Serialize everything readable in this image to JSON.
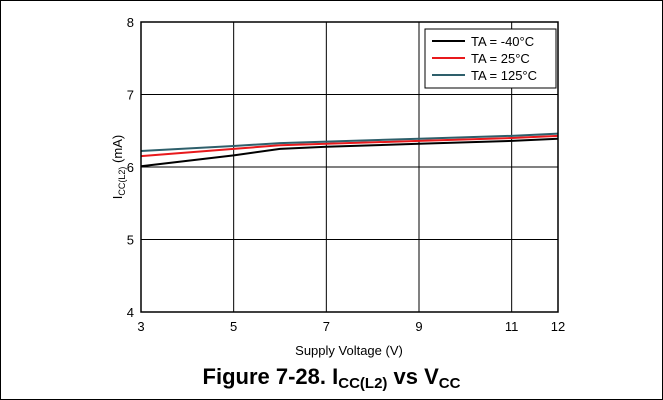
{
  "chart_data": {
    "type": "line",
    "xlabel": "Supply Voltage (V)",
    "ylabel_main": "I",
    "ylabel_sub": "CC(L2)",
    "ylabel_unit": " (mA)",
    "xlim": [
      3,
      12
    ],
    "ylim": [
      4,
      8
    ],
    "xticks": [
      3,
      5,
      7,
      9,
      11,
      12
    ],
    "yticks": [
      4,
      5,
      6,
      7,
      8
    ],
    "xtick_labels": [
      "3",
      "5",
      "7",
      "9",
      "11",
      "12"
    ],
    "ytick_labels": [
      "4",
      "5",
      "6",
      "7",
      "8"
    ],
    "grid": true,
    "legend_position": "top-right",
    "series": [
      {
        "name": "TA = -40°C",
        "color": "#000000",
        "x": [
          3,
          5,
          6,
          7,
          9,
          11,
          12
        ],
        "y": [
          6.01,
          6.16,
          6.25,
          6.28,
          6.32,
          6.36,
          6.39
        ]
      },
      {
        "name": "TA = 25°C",
        "color": "#e8191c",
        "x": [
          3,
          5,
          6,
          7,
          9,
          11,
          12
        ],
        "y": [
          6.15,
          6.25,
          6.3,
          6.32,
          6.36,
          6.4,
          6.43
        ]
      },
      {
        "name": "TA = 125°C",
        "color": "#2e5f6b",
        "x": [
          3,
          5,
          6,
          7,
          9,
          11,
          12
        ],
        "y": [
          6.22,
          6.29,
          6.33,
          6.35,
          6.39,
          6.43,
          6.46
        ]
      }
    ]
  },
  "caption": {
    "prefix": "Figure 7-28. I",
    "sub1": "CC(L2)",
    "middle": " vs V",
    "sub2": "CC"
  }
}
